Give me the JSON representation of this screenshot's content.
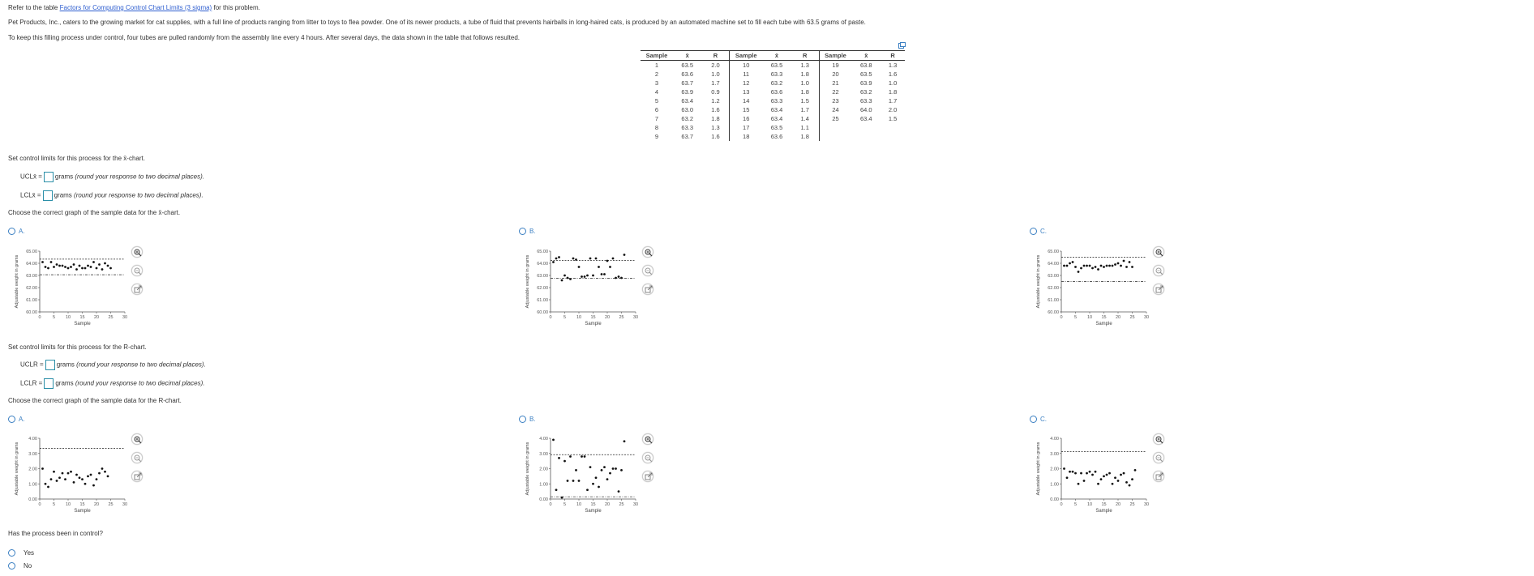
{
  "intro": {
    "refer_prefix": "Refer to the table",
    "refer_link": "Factors for Computing Control Chart Limits (3 sigma)",
    "refer_suffix": "for this problem.",
    "para1": "Pet Products, Inc., caters to the growing market for cat supplies, with a full line of products ranging from litter to toys to flea powder. One of its newer products, a tube of fluid that prevents hairballs in long-haired cats, is produced by an automated machine set to fill each tube with 63.5 grams of paste.",
    "para2": "To keep this filling process under control, four tubes are pulled randomly from the assembly line every 4 hours. After several days, the data shown in the table that follows resulted."
  },
  "table": {
    "headers": [
      "Sample",
      "x̄",
      "R",
      "Sample",
      "x̄",
      "R",
      "Sample",
      "x̄",
      "R"
    ],
    "rows": [
      [
        "1",
        "63.5",
        "2.0",
        "10",
        "63.5",
        "1.3",
        "19",
        "63.8",
        "1.3"
      ],
      [
        "2",
        "63.6",
        "1.0",
        "11",
        "63.3",
        "1.8",
        "20",
        "63.5",
        "1.6"
      ],
      [
        "3",
        "63.7",
        "1.7",
        "12",
        "63.2",
        "1.0",
        "21",
        "63.9",
        "1.0"
      ],
      [
        "4",
        "63.9",
        "0.9",
        "13",
        "63.6",
        "1.8",
        "22",
        "63.2",
        "1.8"
      ],
      [
        "5",
        "63.4",
        "1.2",
        "14",
        "63.3",
        "1.5",
        "23",
        "63.3",
        "1.7"
      ],
      [
        "6",
        "63.0",
        "1.6",
        "15",
        "63.4",
        "1.7",
        "24",
        "64.0",
        "2.0"
      ],
      [
        "7",
        "63.2",
        "1.8",
        "16",
        "63.4",
        "1.4",
        "25",
        "63.4",
        "1.5"
      ],
      [
        "8",
        "63.3",
        "1.3",
        "17",
        "63.5",
        "1.1",
        "",
        "",
        " "
      ],
      [
        "9",
        "63.7",
        "1.6",
        "18",
        "63.6",
        "1.8",
        "",
        "",
        ""
      ]
    ]
  },
  "xbar": {
    "prompt": "Set control limits for this process for the x̄-chart.",
    "ucl_label": "UCLx̄ =",
    "lcl_label": "LCLx̄ =",
    "unit": "grams",
    "hint": "(round your response to two decimal places).",
    "choose": "Choose the correct graph of the sample data for the x̄-chart.",
    "options": [
      "A.",
      "B.",
      "C."
    ]
  },
  "r": {
    "prompt": "Set control limits for this process for the R-chart.",
    "ucl_label": "UCLR =",
    "lcl_label": "LCLR =",
    "unit": "grams",
    "hint": "(round your response to two decimal places).",
    "choose": "Choose the correct graph of the sample data for the R-chart.",
    "options": [
      "A.",
      "B.",
      "C."
    ]
  },
  "control": {
    "question": "Has the process been in control?",
    "options": [
      "Yes",
      "No"
    ]
  },
  "chart_common": {
    "ylabel": "Adjustable weight in grams",
    "xlabel": "Sample",
    "x_ticks": [
      "0",
      "5",
      "10",
      "15",
      "20",
      "25",
      "30"
    ]
  },
  "chart_data": [
    {
      "id": "xbar-A",
      "type": "scatter",
      "ylim": [
        60,
        65
      ],
      "y_ticks": [
        "60.00",
        "61.00",
        "62.00",
        "63.00",
        "64.00",
        "65.00"
      ],
      "ucl": 64.34,
      "lcl": 63.06,
      "values": [
        64.1,
        63.7,
        63.6,
        64.1,
        63.7,
        63.9,
        63.8,
        63.8,
        63.7,
        63.6,
        63.7,
        63.9,
        63.5,
        63.8,
        63.6,
        63.6,
        63.8,
        63.7,
        64.1,
        63.6,
        63.9,
        63.5,
        64.0,
        63.8,
        63.6
      ]
    },
    {
      "id": "xbar-B",
      "type": "scatter",
      "ylim": [
        60,
        65
      ],
      "y_ticks": [
        "60.00",
        "61.00",
        "62.00",
        "63.00",
        "64.00",
        "65.00"
      ],
      "ucl": 64.24,
      "lcl": 62.76,
      "values": [
        64.1,
        64.4,
        64.5,
        62.6,
        63.0,
        62.8,
        62.7,
        64.4,
        64.3,
        63.7,
        62.9,
        62.9,
        63.0,
        64.4,
        63.0,
        64.4,
        63.7,
        63.1,
        63.1,
        64.2,
        63.7,
        64.4,
        62.8,
        62.9,
        62.8,
        64.7
      ]
    },
    {
      "id": "xbar-C",
      "type": "scatter",
      "ylim": [
        60,
        65
      ],
      "y_ticks": [
        "60.00",
        "61.00",
        "62.00",
        "63.00",
        "64.00",
        "65.00"
      ],
      "ucl": 64.49,
      "lcl": 62.51,
      "values": [
        63.8,
        63.8,
        64.0,
        64.1,
        63.7,
        63.3,
        63.6,
        63.8,
        63.8,
        63.8,
        63.6,
        63.7,
        63.5,
        63.8,
        63.7,
        63.8,
        63.8,
        63.8,
        63.9,
        64.0,
        63.8,
        64.2,
        63.7,
        64.1,
        63.7
      ]
    },
    {
      "id": "R-A",
      "type": "scatter",
      "ylim": [
        0,
        4
      ],
      "y_ticks": [
        "0.00",
        "1.00",
        "2.00",
        "3.00",
        "4.00"
      ],
      "ucl": 3.34,
      "lcl": 0.0,
      "values": [
        2.0,
        1.0,
        0.8,
        1.3,
        1.8,
        1.2,
        1.4,
        1.7,
        1.3,
        1.7,
        1.8,
        1.1,
        1.6,
        1.4,
        1.3,
        1.0,
        1.5,
        1.6,
        0.9,
        1.3,
        1.7,
        2.0,
        1.8,
        1.5
      ]
    },
    {
      "id": "R-B",
      "type": "scatter",
      "ylim": [
        0,
        4
      ],
      "y_ticks": [
        "0.00",
        "1.00",
        "2.00",
        "3.00",
        "4.00"
      ],
      "ucl": 2.92,
      "lcl": 0.15,
      "values": [
        3.9,
        0.6,
        2.7,
        0.1,
        2.5,
        1.2,
        2.8,
        1.2,
        1.9,
        1.2,
        2.8,
        2.8,
        0.6,
        2.1,
        1.0,
        1.4,
        0.8,
        1.9,
        2.1,
        1.3,
        1.7,
        2.0,
        2.0,
        0.5,
        1.9,
        3.8
      ]
    },
    {
      "id": "R-C",
      "type": "scatter",
      "ylim": [
        0,
        4
      ],
      "y_ticks": [
        "0.00",
        "1.00",
        "2.00",
        "3.00",
        "4.00"
      ],
      "ucl": 3.12,
      "lcl": 0.0,
      "values": [
        2.0,
        1.4,
        1.8,
        1.8,
        1.7,
        1.0,
        1.7,
        1.2,
        1.7,
        1.8,
        1.6,
        1.8,
        1.0,
        1.3,
        1.5,
        1.6,
        1.7,
        1.0,
        1.4,
        1.2,
        1.6,
        1.7,
        1.1,
        0.9,
        1.3,
        1.9
      ]
    }
  ]
}
